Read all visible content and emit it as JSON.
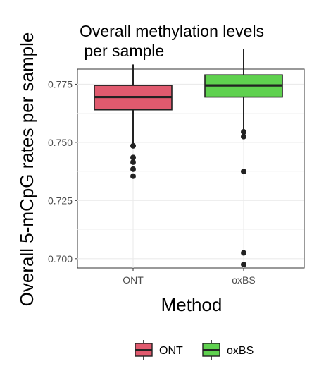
{
  "chart_data": {
    "type": "box",
    "title_lines": [
      "Overall methylation levels",
      " per sample"
    ],
    "xlabel": "Method",
    "ylabel": "Overall 5-mCpG rates per sample",
    "categories": [
      "ONT",
      "oxBS"
    ],
    "ylim": [
      0.696,
      0.7815
    ],
    "yticks": [
      0.7,
      0.725,
      0.75,
      0.775
    ],
    "ytick_labels": [
      "0.700",
      "0.725",
      "0.750",
      "0.775"
    ],
    "grid": true,
    "legend_position": "bottom",
    "series": [
      {
        "name": "ONT",
        "color": "#E05A6E",
        "min": 0.7495,
        "q1": 0.764,
        "median": 0.7695,
        "q3": 0.7745,
        "max": 0.7835,
        "outliers": [
          0.7485,
          0.7435,
          0.7415,
          0.7385,
          0.7355
        ]
      },
      {
        "name": "oxBS",
        "color": "#5FD14F",
        "min": 0.7555,
        "q1": 0.7695,
        "median": 0.7745,
        "q3": 0.779,
        "max": 0.79,
        "outliers": [
          0.7545,
          0.7525,
          0.7375,
          0.7025,
          0.6975
        ]
      }
    ]
  }
}
